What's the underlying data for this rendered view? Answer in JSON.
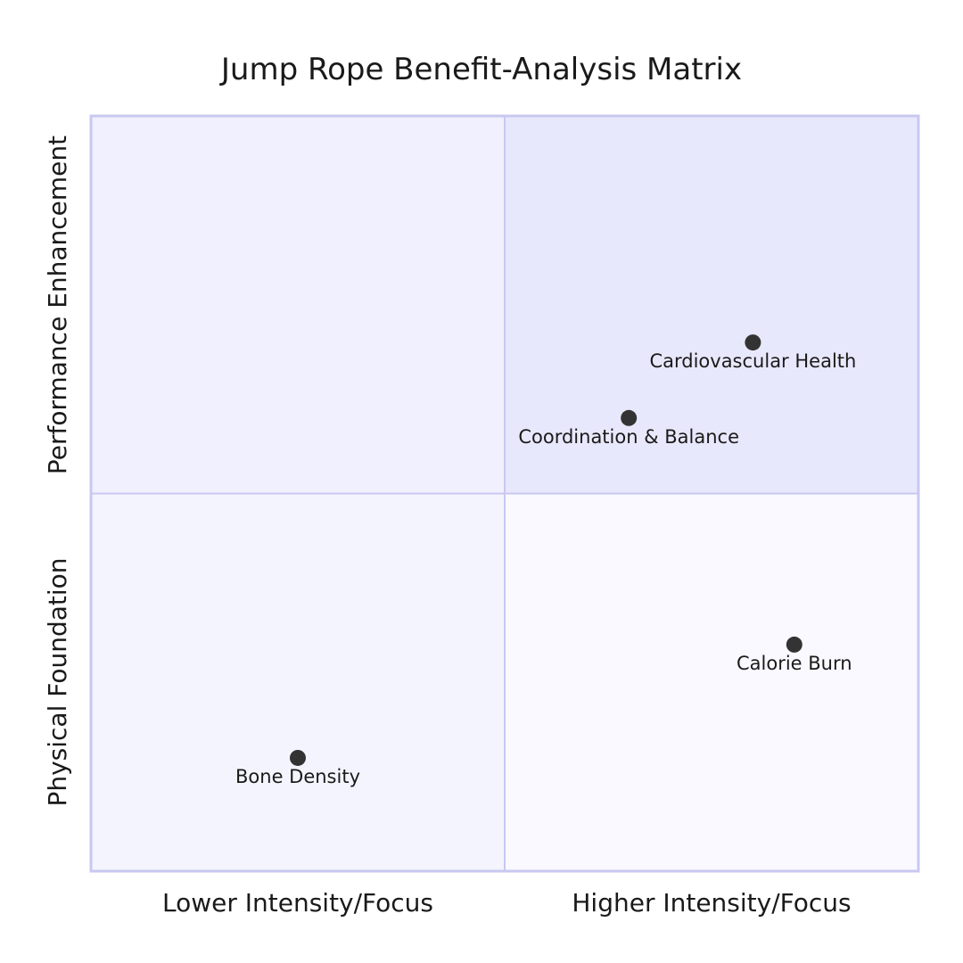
{
  "chart_data": {
    "type": "scatter",
    "subtype": "quadrant",
    "title": "Jump Rope Benefit-Analysis Matrix",
    "x_axis": {
      "low": "Lower Intensity/Focus",
      "high": "Higher Intensity/Focus"
    },
    "y_axis": {
      "low": "Physical Foundation",
      "high": "Performance Enhancement"
    },
    "xlim": [
      0,
      1
    ],
    "ylim": [
      0,
      1
    ],
    "quadrant_colors": {
      "q1": "#e8e8fc",
      "q2": "#f0f0fe",
      "q3": "#f4f4fe",
      "q4": "#f9f9ff"
    },
    "border_color": "#c8c8f0",
    "point_color": "#333333",
    "points": [
      {
        "label": "Cardiovascular Health",
        "x": 0.8,
        "y": 0.7
      },
      {
        "label": "Coordination & Balance",
        "x": 0.65,
        "y": 0.6
      },
      {
        "label": "Calorie Burn",
        "x": 0.85,
        "y": 0.3
      },
      {
        "label": "Bone Density",
        "x": 0.25,
        "y": 0.15
      }
    ]
  }
}
